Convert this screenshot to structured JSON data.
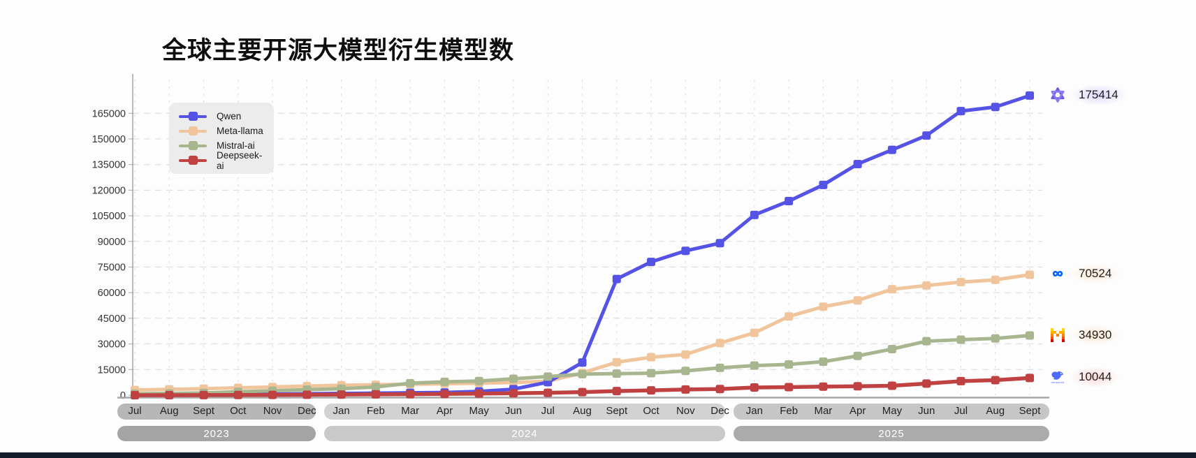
{
  "title": "全球主要开源大模型衍生模型数",
  "chart_data": {
    "type": "line",
    "title": "全球主要开源大模型衍生模型数",
    "xlabel": "",
    "ylabel": "",
    "ylim": [
      0,
      180000
    ],
    "grid": true,
    "legend_position": "top-left",
    "yticks": [
      0,
      15000,
      30000,
      45000,
      60000,
      75000,
      90000,
      105000,
      120000,
      135000,
      150000,
      165000
    ],
    "months": [
      "Jul",
      "Aug",
      "Sept",
      "Oct",
      "Nov",
      "Dec",
      "Jan",
      "Feb",
      "Mar",
      "Apr",
      "May",
      "Jun",
      "Jul",
      "Aug",
      "Sept",
      "Oct",
      "Nov",
      "Dec",
      "Jan",
      "Feb",
      "Mar",
      "Apr",
      "May",
      "Jun",
      "Jul",
      "Aug",
      "Sept"
    ],
    "year_groups": [
      {
        "label": "2023",
        "from": 0,
        "to": 5,
        "months_bar_color": "#b7b7b7",
        "year_bar_color": "#a4a4a4"
      },
      {
        "label": "2024",
        "from": 6,
        "to": 17,
        "months_bar_color": "#d2d2d2",
        "year_bar_color": "#c9c9c9"
      },
      {
        "label": "2025",
        "from": 18,
        "to": 26,
        "months_bar_color": "#c6c6c6",
        "year_bar_color": "#ababab"
      }
    ],
    "series": [
      {
        "name": "Qwen",
        "color": "#5552e6",
        "icon": "qwen-icon",
        "end_label": "175414",
        "glow": "glow-qwen",
        "values": [
          0,
          100,
          250,
          400,
          600,
          800,
          1000,
          1200,
          1400,
          1600,
          2200,
          3500,
          7600,
          19100,
          68000,
          78000,
          84500,
          89000,
          105500,
          113600,
          123100,
          135300,
          143600,
          152000,
          166300,
          168700,
          175414
        ]
      },
      {
        "name": "Meta-llama",
        "color": "#f1c59c",
        "icon": "meta-icon",
        "end_label": "70524",
        "glow": "glow-meta",
        "values": [
          3000,
          3400,
          3800,
          4300,
          4800,
          5300,
          5800,
          6100,
          6400,
          6700,
          7000,
          7400,
          8200,
          13000,
          19300,
          22200,
          23800,
          30500,
          36500,
          46100,
          51800,
          55500,
          62000,
          64200,
          66200,
          67500,
          70524
        ]
      },
      {
        "name": "Mistral-ai",
        "color": "#a8b68f",
        "icon": "mistral-icon",
        "end_label": "34930",
        "glow": "glow-mistral",
        "values": [
          800,
          1000,
          1300,
          2000,
          2600,
          3200,
          3800,
          4800,
          7000,
          7800,
          8300,
          9600,
          10900,
          12300,
          12600,
          12900,
          14200,
          16000,
          17300,
          18000,
          19600,
          23000,
          27000,
          31600,
          32500,
          33200,
          34930
        ]
      },
      {
        "name": "Deepseek-ai",
        "color": "#bf4141",
        "icon": "deepseek-icon",
        "end_label": "10044",
        "glow": "glow-deepseek",
        "values": [
          0,
          0,
          50,
          100,
          150,
          250,
          350,
          450,
          550,
          700,
          900,
          1100,
          1400,
          1800,
          2400,
          2800,
          3300,
          3600,
          4500,
          4700,
          5000,
          5200,
          5500,
          6800,
          8200,
          8800,
          10044
        ]
      }
    ],
    "deepseek_icon_word": "deepseek"
  }
}
